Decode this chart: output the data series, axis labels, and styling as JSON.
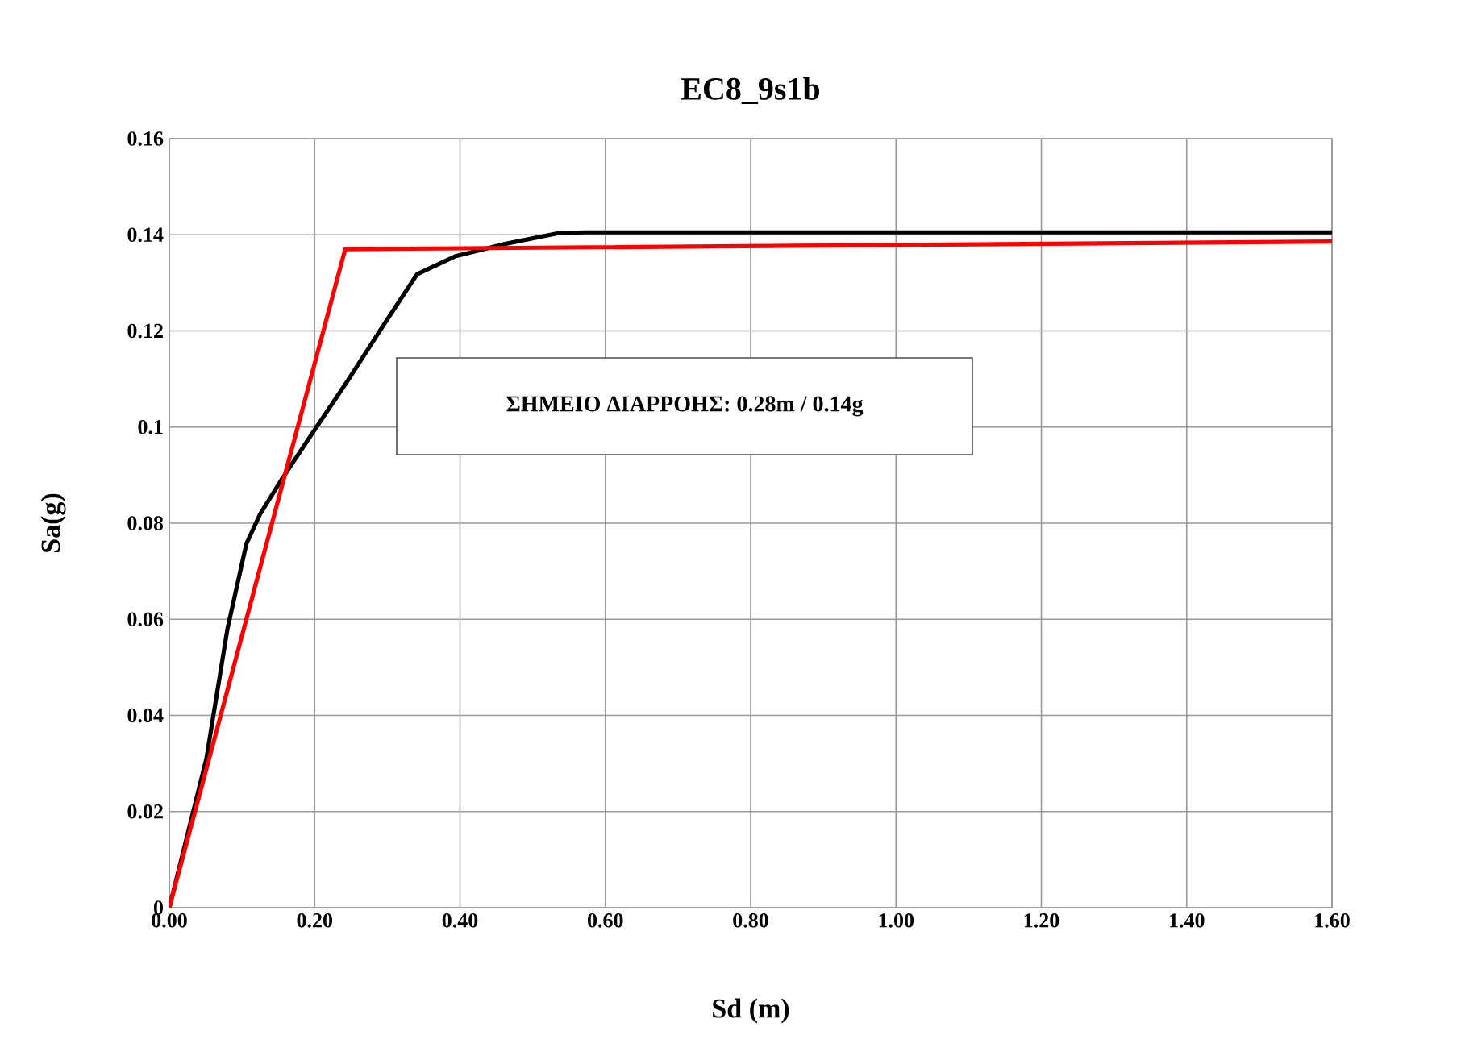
{
  "chart_data": {
    "type": "line",
    "title": "EC8_9s1b",
    "xlabel": "Sd (m)",
    "ylabel": "Sa(g)",
    "annotations": [
      "ΣΗΜΕΙΟ ΔΙΑΡΡΟΗΣ: 0.28m / 0.14g"
    ],
    "xlim": [
      0,
      1.6
    ],
    "ylim": [
      0,
      0.16
    ],
    "xticks": [
      {
        "value": 0,
        "label": "0.00"
      },
      {
        "value": 0.2,
        "label": "0.20"
      },
      {
        "value": 0.4,
        "label": "0.40"
      },
      {
        "value": 0.6,
        "label": "0.60"
      },
      {
        "value": 0.8,
        "label": "0.80"
      },
      {
        "value": 1.0,
        "label": "1.00"
      },
      {
        "value": 1.2,
        "label": "1.20"
      },
      {
        "value": 1.4,
        "label": "1.40"
      },
      {
        "value": 1.6,
        "label": "1.60"
      }
    ],
    "yticks": [
      0,
      0.02,
      0.04,
      0.06,
      0.08,
      0.1,
      0.12,
      0.14,
      0.16
    ],
    "grid": true,
    "marker": "none",
    "line_style": "solid",
    "series": [
      {
        "color": "#000000",
        "x": [
          0,
          0.051,
          0.08,
          0.106,
          0.125,
          0.155,
          0.199,
          0.244,
          0.296,
          0.341,
          0.393,
          0.459,
          0.534,
          0.571,
          1.6
        ],
        "values": [
          0,
          0.031,
          0.058,
          0.0757,
          0.0819,
          0.0892,
          0.0992,
          0.1093,
          0.1215,
          0.1318,
          0.1355,
          0.138,
          0.1403,
          0.1405,
          0.1405
        ]
      },
      {
        "color": "#ff0000",
        "x": [
          0,
          0.242,
          1.6
        ],
        "values": [
          0,
          0.137,
          0.1386
        ]
      }
    ]
  }
}
